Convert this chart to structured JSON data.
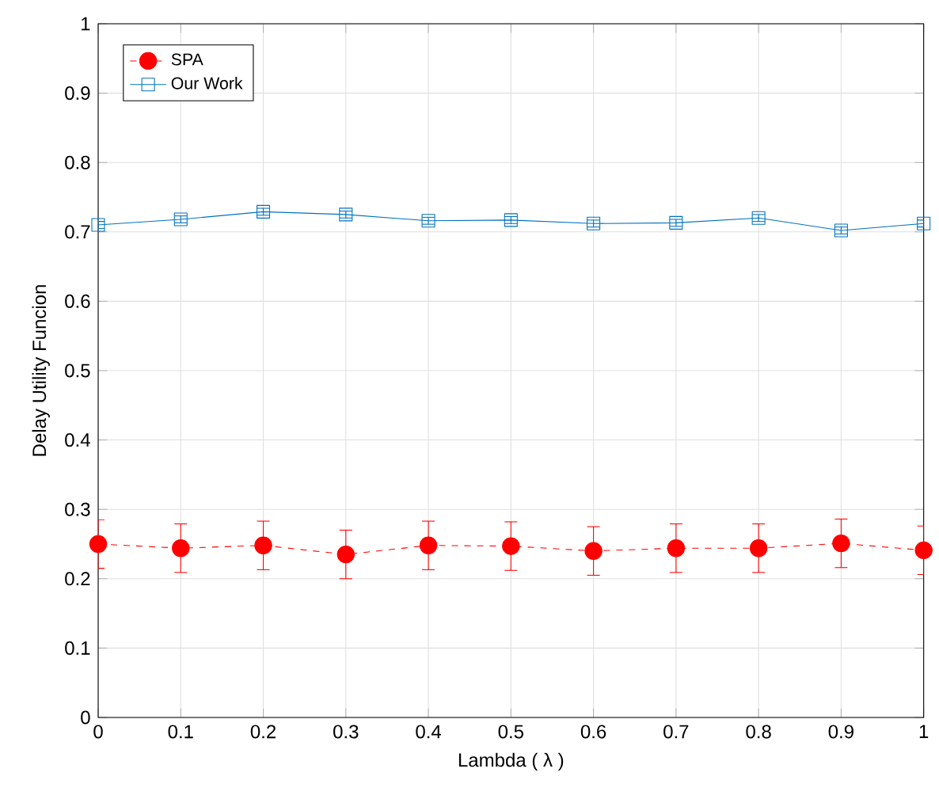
{
  "chart_data": {
    "type": "line",
    "xlabel": "Lambda ( λ )",
    "ylabel": "Delay Utility Funcion",
    "x": [
      0,
      0.1,
      0.2,
      0.3,
      0.4,
      0.5,
      0.6,
      0.7,
      0.8,
      0.9,
      1
    ],
    "series": [
      {
        "name": "SPA",
        "color": "#ff0000",
        "marker": "circle",
        "line_style": "dashed",
        "values": [
          0.25,
          0.244,
          0.248,
          0.235,
          0.248,
          0.247,
          0.24,
          0.244,
          0.244,
          0.251,
          0.241
        ],
        "errors": [
          0.035,
          0.035,
          0.035,
          0.035,
          0.035,
          0.035,
          0.035,
          0.035,
          0.035,
          0.035,
          0.035
        ]
      },
      {
        "name": "Our Work",
        "color": "#0072bd",
        "marker": "square",
        "line_style": "solid",
        "values": [
          0.71,
          0.718,
          0.729,
          0.725,
          0.716,
          0.717,
          0.712,
          0.713,
          0.72,
          0.702,
          0.712
        ],
        "errors": [
          0.005,
          0.005,
          0.005,
          0.005,
          0.005,
          0.005,
          0.005,
          0.005,
          0.005,
          0.005,
          0.005
        ]
      }
    ],
    "xlim": [
      0,
      1
    ],
    "ylim": [
      0,
      1
    ],
    "xticks": [
      0,
      0.1,
      0.2,
      0.3,
      0.4,
      0.5,
      0.6,
      0.7,
      0.8,
      0.9,
      1
    ],
    "yticks": [
      0,
      0.1,
      0.2,
      0.3,
      0.4,
      0.5,
      0.6,
      0.7,
      0.8,
      0.9,
      1
    ],
    "grid": true,
    "legend": "top left"
  }
}
